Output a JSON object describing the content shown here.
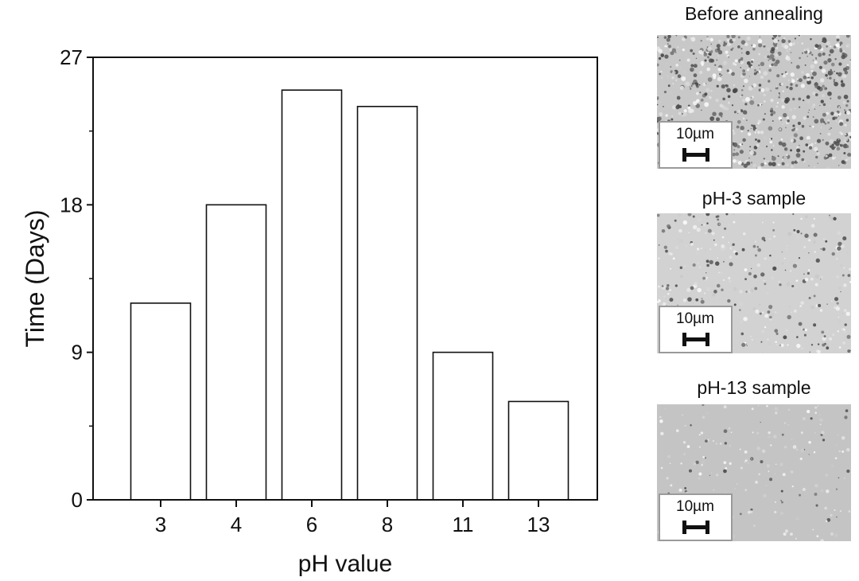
{
  "chart_data": {
    "type": "bar",
    "categories": [
      "3",
      "4",
      "6",
      "8",
      "11",
      "13"
    ],
    "values": [
      12,
      18,
      25,
      24,
      9,
      6
    ],
    "xlabel": "pH value",
    "ylabel": "Time (Days)",
    "ylim": [
      0,
      27
    ],
    "yticks": [
      0,
      9,
      18,
      27
    ],
    "grid": false
  },
  "panels": [
    {
      "title": "Before annealing",
      "scale_label": "10µm",
      "texture": "dense"
    },
    {
      "title": "pH-3 sample",
      "scale_label": "10µm",
      "texture": "medium"
    },
    {
      "title": "pH-13 sample",
      "scale_label": "10µm",
      "texture": "sparse"
    }
  ]
}
